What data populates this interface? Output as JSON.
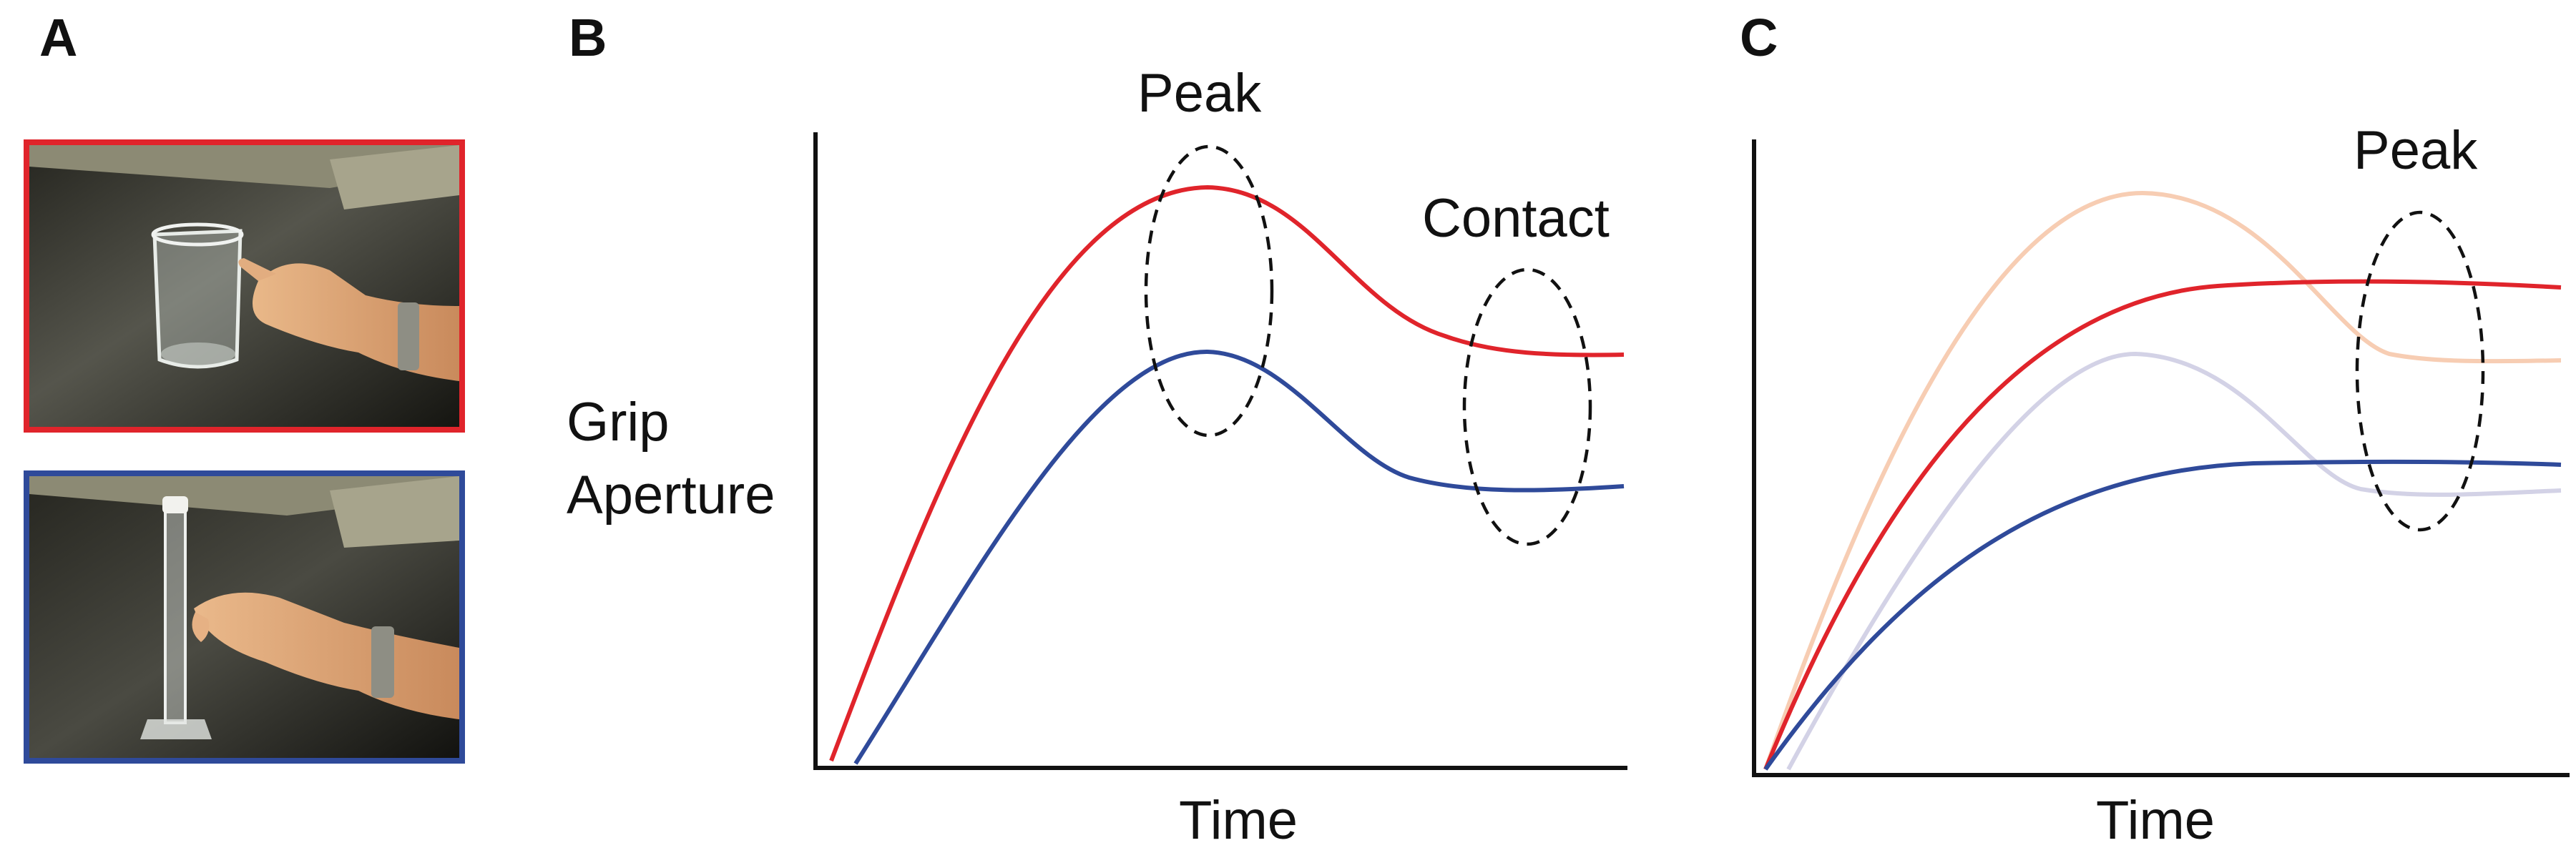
{
  "panels": {
    "a": {
      "letter": "A",
      "photos": [
        {
          "subject": "hand reaching toward a glass beaker on a table",
          "frame_color": "#e0242b"
        },
        {
          "subject": "hand reaching toward a tall graduated cylinder on a table",
          "frame_color": "#2f4a9a"
        }
      ]
    },
    "b": {
      "letter": "B",
      "y_label_line1": "Grip",
      "y_label_line2": "Aperture",
      "x_label": "Time",
      "annotation_peak": "Peak",
      "annotation_contact": "Contact"
    },
    "c": {
      "letter": "C",
      "x_label": "Time",
      "annotation_peak": "Peak"
    }
  },
  "colors": {
    "red": "#e0242b",
    "blue": "#2f4a9a",
    "faded_red": "#f7cdb3",
    "faded_blue": "#d3d2e6",
    "axis": "#111111"
  }
}
